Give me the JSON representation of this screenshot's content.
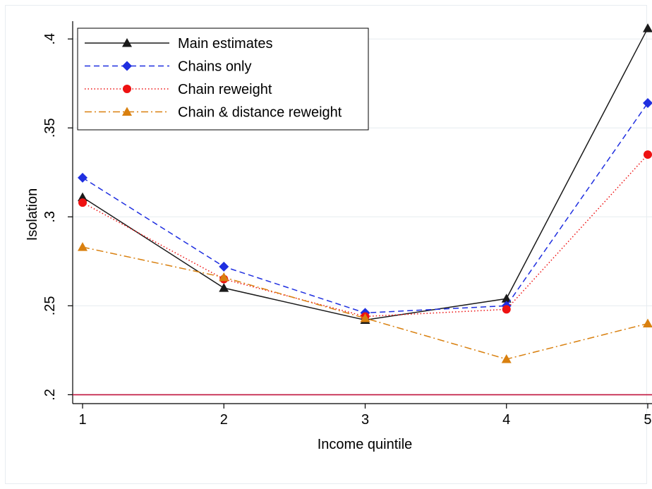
{
  "chart_data": {
    "type": "line",
    "title": "",
    "xlabel": "Income quintile",
    "ylabel": "Isolation",
    "x": [
      1,
      2,
      3,
      4,
      5
    ],
    "x_tick_labels": [
      "1",
      "2",
      "3",
      "4",
      "5"
    ],
    "y_ticks": [
      0.2,
      0.25,
      0.3,
      0.35,
      0.4
    ],
    "y_tick_labels": [
      ".2",
      ".25",
      ".3",
      ".35",
      ".4"
    ],
    "xlim": [
      0.93,
      5.03
    ],
    "ylim": [
      0.195,
      0.41
    ],
    "grid": "horizontal",
    "legend_position": "top-left",
    "reference_line": {
      "y": 0.2,
      "color": "#c0143c"
    },
    "series": [
      {
        "name": "Main estimates",
        "values": [
          0.311,
          0.26,
          0.242,
          0.254,
          0.406
        ],
        "color": "#1a1a1a",
        "dash": "solid",
        "marker": "triangle"
      },
      {
        "name": "Chains only",
        "values": [
          0.322,
          0.272,
          0.246,
          0.25,
          0.364
        ],
        "color": "#1f2fe0",
        "dash": "dashed",
        "marker": "diamond"
      },
      {
        "name": "Chain reweight",
        "values": [
          0.308,
          0.265,
          0.244,
          0.248,
          0.335
        ],
        "color": "#ee1111",
        "dash": "dotted",
        "marker": "circle"
      },
      {
        "name": "Chain & distance reweight",
        "values": [
          0.283,
          0.266,
          0.243,
          0.22,
          0.24
        ],
        "color": "#d9800f",
        "dash": "dashdot",
        "marker": "triangle"
      }
    ]
  }
}
